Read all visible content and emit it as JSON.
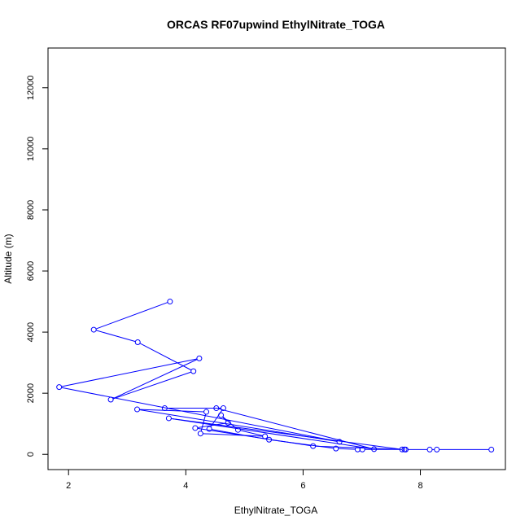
{
  "chart_data": {
    "type": "line",
    "title": "ORCAS RF07upwind EthylNitrate_TOGA",
    "xlabel": "EthylNitrate_TOGA",
    "ylabel": "Altitude (m)",
    "xlim": [
      1.65,
      9.45
    ],
    "ylim": [
      -500,
      13300
    ],
    "xticks": [
      2,
      4,
      6,
      8
    ],
    "yticks": [
      0,
      2000,
      4000,
      6000,
      8000,
      10000,
      12000
    ],
    "grid": false,
    "series": [
      {
        "color": "#0000ff",
        "marker": "open-circle",
        "points": [
          {
            "x": 3.73,
            "y": 5000
          },
          {
            "x": 2.43,
            "y": 4080
          },
          {
            "x": 3.18,
            "y": 3670
          },
          {
            "x": 4.13,
            "y": 2720
          },
          {
            "x": 2.72,
            "y": 1790
          },
          {
            "x": 4.23,
            "y": 3140
          },
          {
            "x": 1.84,
            "y": 2200
          },
          {
            "x": 6.62,
            "y": 410
          },
          {
            "x": 3.17,
            "y": 1470
          },
          {
            "x": 4.35,
            "y": 1390
          },
          {
            "x": 4.25,
            "y": 680
          },
          {
            "x": 5.35,
            "y": 590
          },
          {
            "x": 4.89,
            "y": 800
          },
          {
            "x": 4.6,
            "y": 1280
          },
          {
            "x": 4.72,
            "y": 1030
          },
          {
            "x": 4.16,
            "y": 860
          },
          {
            "x": 6.17,
            "y": 270
          },
          {
            "x": 7.69,
            "y": 160
          },
          {
            "x": 3.71,
            "y": 1180
          },
          {
            "x": 7.21,
            "y": 170
          },
          {
            "x": 4.52,
            "y": 1510
          },
          {
            "x": 3.64,
            "y": 1510
          },
          {
            "x": 4.64,
            "y": 1510
          },
          {
            "x": 4.4,
            "y": 830
          },
          {
            "x": 5.42,
            "y": 480
          },
          {
            "x": 6.56,
            "y": 190
          },
          {
            "x": 6.93,
            "y": 160
          },
          {
            "x": 7.01,
            "y": 160
          },
          {
            "x": 7.73,
            "y": 160
          },
          {
            "x": 7.75,
            "y": 155
          },
          {
            "x": 8.16,
            "y": 155
          },
          {
            "x": 8.28,
            "y": 155
          },
          {
            "x": 9.21,
            "y": 155
          }
        ]
      }
    ]
  }
}
